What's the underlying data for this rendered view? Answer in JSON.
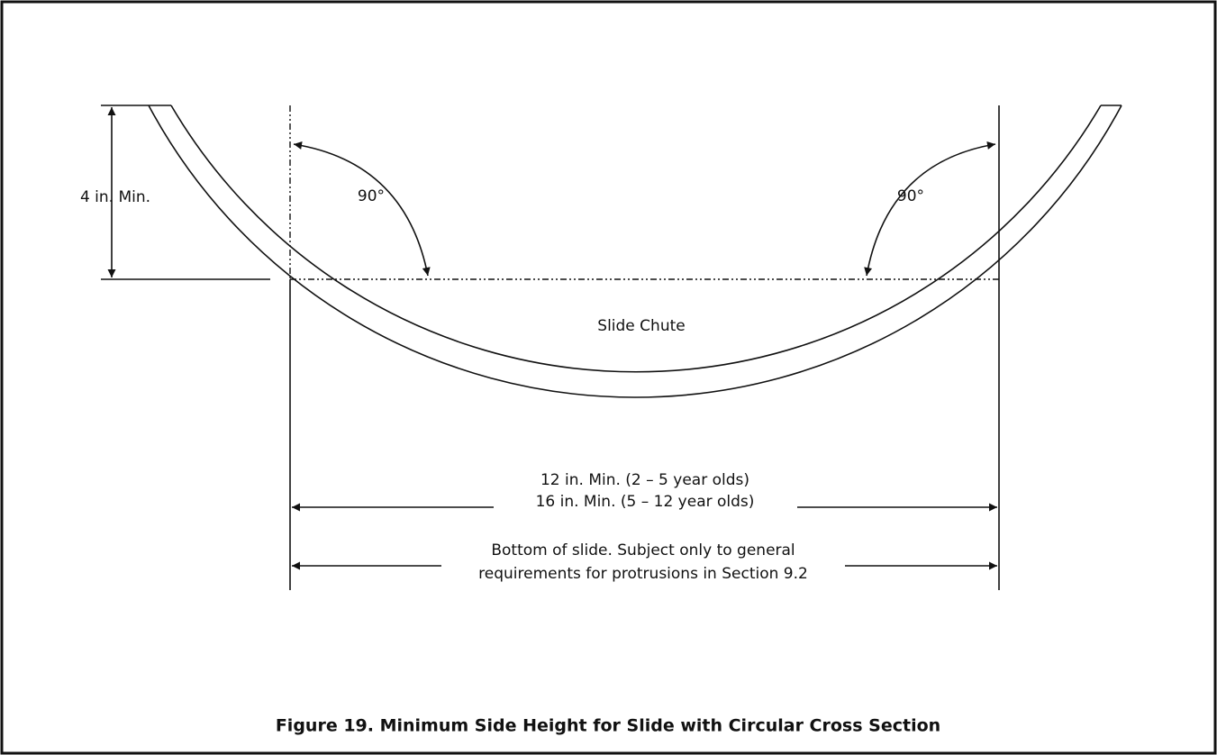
{
  "labels": {
    "height": "4 in. Min.",
    "angle_left": "90°",
    "angle_right": "90°",
    "chute": "Slide Chute"
  },
  "width_note": [
    "12 in. Min. (2 – 5 year olds)",
    "16 in. Min. (5 – 12 year olds)"
  ],
  "bottom_note": [
    "Bottom of slide. Subject only to general",
    "requirements for protrusions in Section 9.2"
  ],
  "caption": "Figure 19. Minimum Side Height for Slide with Circular Cross Section"
}
